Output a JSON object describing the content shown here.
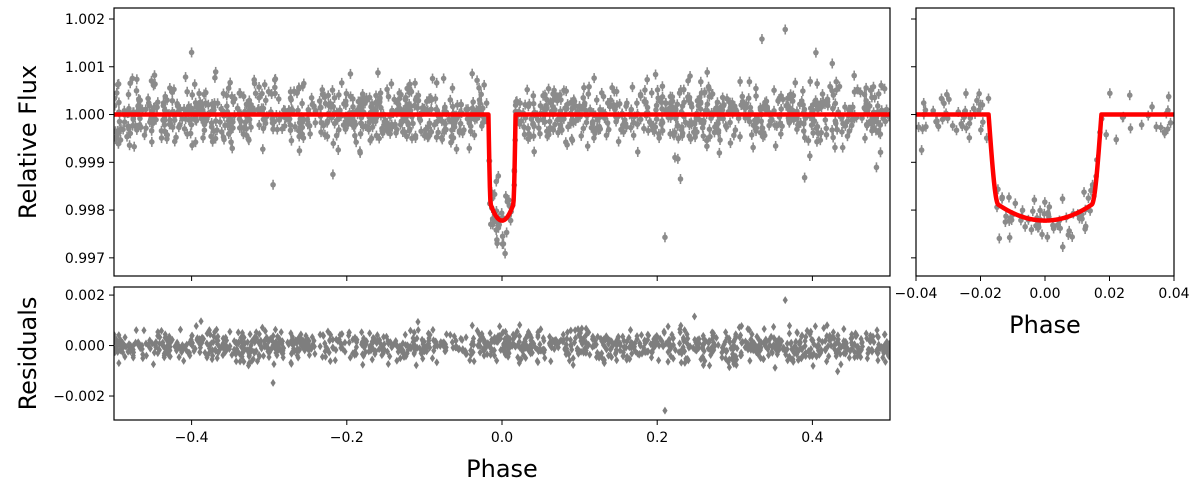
{
  "chart_data": [
    {
      "id": "main",
      "type": "scatter",
      "xlabel": "",
      "ylabel": "Relative Flux",
      "xlim": [
        -0.5,
        0.5
      ],
      "ylim": [
        0.99662,
        1.00223
      ],
      "xticks": [
        -0.4,
        -0.2,
        0.0,
        0.2,
        0.4
      ],
      "yticks": [
        0.997,
        0.998,
        0.999,
        1.0,
        1.001,
        1.002
      ],
      "ytick_labels": [
        "0.997",
        "0.998",
        "0.999",
        "1.000",
        "1.001",
        "1.002"
      ],
      "show_xtick_labels": false,
      "series": [
        {
          "kind": "errorbar-points",
          "color": "#000000",
          "opacity": 0.45,
          "count": 1300,
          "scatter_sigma": 0.00032
        },
        {
          "kind": "transit-model",
          "color": "#ff0000",
          "baseline": 1.0,
          "depth": 0.00222,
          "half_width": 0.0175,
          "ingress": 0.003
        }
      ],
      "outliers": [
        [
          -0.295,
          0.99853
        ],
        [
          -0.4,
          1.0013
        ],
        [
          0.21,
          0.99743
        ],
        [
          0.365,
          1.00178
        ],
        [
          0.335,
          1.00158
        ],
        [
          0.39,
          0.99868
        ],
        [
          0.23,
          0.99865
        ]
      ]
    },
    {
      "id": "zoom",
      "type": "scatter",
      "xlabel": "Phase",
      "ylabel": "",
      "xlim": [
        -0.04,
        0.04
      ],
      "ylim": [
        0.99662,
        1.00223
      ],
      "xticks": [
        -0.04,
        -0.02,
        0.0,
        0.02,
        0.04
      ],
      "xtick_labels": [
        "−0.04",
        "−0.02",
        "0.00",
        "0.02",
        "0.04"
      ],
      "yticks": [
        0.997,
        0.998,
        0.999,
        1.0,
        1.001,
        1.002
      ],
      "show_ytick_labels": false,
      "series": [
        {
          "kind": "errorbar-points",
          "color": "#000000",
          "opacity": 0.45,
          "count": 130,
          "scatter_sigma": 0.00028
        },
        {
          "kind": "transit-model",
          "color": "#ff0000",
          "baseline": 1.0,
          "depth": 0.00222,
          "half_width": 0.0175,
          "ingress": 0.003
        }
      ]
    },
    {
      "id": "residuals",
      "type": "scatter",
      "xlabel": "Phase",
      "ylabel": "Residuals",
      "xlim": [
        -0.5,
        0.5
      ],
      "ylim": [
        -0.00295,
        0.00232
      ],
      "xticks": [
        -0.4,
        -0.2,
        0.0,
        0.2,
        0.4
      ],
      "xtick_labels": [
        "−0.4",
        "−0.2",
        "0.0",
        "0.2",
        "0.4"
      ],
      "yticks": [
        -0.002,
        0.0,
        0.002
      ],
      "ytick_labels": [
        "−0.002",
        "0.000",
        "0.002"
      ],
      "series": [
        {
          "kind": "diamond-points",
          "color": "#000000",
          "opacity": 0.5,
          "count": 1300,
          "scatter_sigma": 0.0003
        }
      ],
      "outliers": [
        [
          0.21,
          -0.00258
        ],
        [
          -0.295,
          -0.00148
        ],
        [
          0.365,
          0.0018
        ]
      ]
    }
  ]
}
